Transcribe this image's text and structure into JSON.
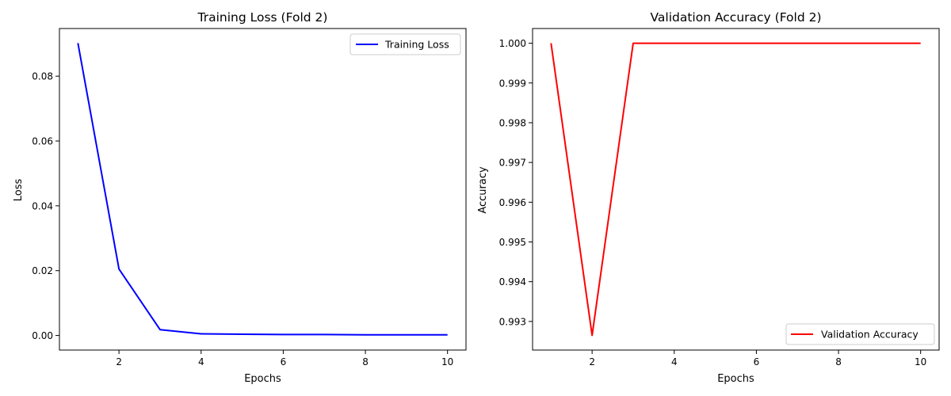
{
  "chart_data": [
    {
      "type": "line",
      "title": "Training Loss (Fold 2)",
      "xlabel": "Epochs",
      "ylabel": "Loss",
      "x": [
        1,
        2,
        3,
        4,
        5,
        6,
        7,
        8,
        9,
        10
      ],
      "series": [
        {
          "name": "Training Loss",
          "color": "#0000ff",
          "values": [
            0.0902,
            0.0205,
            0.0018,
            0.0005,
            0.0004,
            0.0003,
            0.0003,
            0.0002,
            0.0002,
            0.0002
          ]
        }
      ],
      "xlim": [
        0.55,
        10.45
      ],
      "ylim": [
        -0.0045,
        0.0947
      ],
      "xticks": [
        2,
        4,
        6,
        8,
        10
      ],
      "yticks": [
        0.0,
        0.02,
        0.04,
        0.06,
        0.08
      ],
      "ytick_labels": [
        "0.00",
        "0.02",
        "0.04",
        "0.06",
        "0.08"
      ],
      "legend_position": "top-right",
      "grid": false
    },
    {
      "type": "line",
      "title": "Validation Accuracy (Fold 2)",
      "xlabel": "Epochs",
      "ylabel": "Accuracy",
      "x": [
        1,
        2,
        3,
        4,
        5,
        6,
        7,
        8,
        9,
        10
      ],
      "series": [
        {
          "name": "Validation Accuracy",
          "color": "#ff0000",
          "values": [
            1.0,
            0.99265,
            1.0,
            1.0,
            1.0,
            1.0,
            1.0,
            1.0,
            1.0,
            1.0
          ]
        }
      ],
      "xlim": [
        0.55,
        10.45
      ],
      "ylim": [
        0.99228,
        1.00037
      ],
      "xticks": [
        2,
        4,
        6,
        8,
        10
      ],
      "yticks": [
        0.993,
        0.994,
        0.995,
        0.996,
        0.997,
        0.998,
        0.999,
        1.0
      ],
      "ytick_labels": [
        "0.993",
        "0.994",
        "0.995",
        "0.996",
        "0.997",
        "0.998",
        "0.999",
        "1.000"
      ],
      "legend_position": "bottom-right",
      "grid": false
    }
  ]
}
